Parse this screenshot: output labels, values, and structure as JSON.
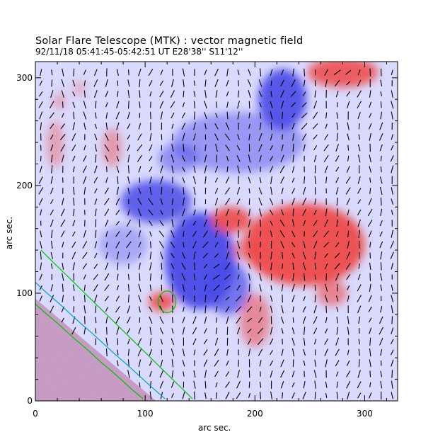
{
  "chart_data": {
    "type": "heatmap",
    "title": "Solar Flare Telescope (MTK) : vector magnetic field",
    "subtitle": "92/11/18  05:41:45-05:42:51 UT    E28'38''  S11'12''",
    "xlabel": "arc sec.",
    "ylabel": "arc sec.",
    "xlim": [
      0,
      330
    ],
    "ylim": [
      0,
      315
    ],
    "xticks": [
      0,
      100,
      200,
      300
    ],
    "yticks": [
      0,
      100,
      200,
      300
    ],
    "colors": {
      "positive": "#ee3b3b",
      "negative": "#3c3ce6",
      "background": "#d7d7ff",
      "vectors": "#000000",
      "limb_contours": [
        "#00c000",
        "#00a0c0"
      ]
    },
    "positive_regions": [
      {
        "cx": 245,
        "cy": 145,
        "rx": 55,
        "ry": 38,
        "strength": 0.95
      },
      {
        "cx": 178,
        "cy": 168,
        "rx": 18,
        "ry": 12,
        "strength": 0.9
      },
      {
        "cx": 192,
        "cy": 140,
        "rx": 14,
        "ry": 10,
        "strength": 0.5
      },
      {
        "cx": 270,
        "cy": 100,
        "rx": 14,
        "ry": 12,
        "strength": 0.6
      },
      {
        "cx": 200,
        "cy": 75,
        "rx": 14,
        "ry": 25,
        "strength": 0.55
      },
      {
        "cx": 115,
        "cy": 92,
        "rx": 12,
        "ry": 9,
        "strength": 0.85
      },
      {
        "cx": 280,
        "cy": 305,
        "rx": 32,
        "ry": 14,
        "strength": 0.85
      },
      {
        "cx": 18,
        "cy": 238,
        "rx": 8,
        "ry": 22,
        "strength": 0.4
      },
      {
        "cx": 70,
        "cy": 235,
        "rx": 9,
        "ry": 18,
        "strength": 0.45
      },
      {
        "cx": 22,
        "cy": 278,
        "rx": 6,
        "ry": 8,
        "strength": 0.35
      },
      {
        "cx": 40,
        "cy": 290,
        "rx": 6,
        "ry": 7,
        "strength": 0.3
      }
    ],
    "negative_regions": [
      {
        "cx": 150,
        "cy": 130,
        "rx": 32,
        "ry": 45,
        "strength": 0.95
      },
      {
        "cx": 110,
        "cy": 185,
        "rx": 32,
        "ry": 20,
        "strength": 0.85
      },
      {
        "cx": 175,
        "cy": 105,
        "rx": 20,
        "ry": 25,
        "strength": 0.7
      },
      {
        "cx": 225,
        "cy": 280,
        "rx": 22,
        "ry": 28,
        "strength": 0.9
      },
      {
        "cx": 185,
        "cy": 240,
        "rx": 60,
        "ry": 28,
        "strength": 0.45
      },
      {
        "cx": 130,
        "cy": 225,
        "rx": 18,
        "ry": 14,
        "strength": 0.5
      },
      {
        "cx": 80,
        "cy": 145,
        "rx": 22,
        "ry": 18,
        "strength": 0.35
      }
    ],
    "limb_contours": [
      {
        "color": "#00c000",
        "x0": 5,
        "y0": 140,
        "x1": 145,
        "y1": 0
      },
      {
        "color": "#00a0c0",
        "x0": 0,
        "y0": 110,
        "x1": 120,
        "y1": 0
      },
      {
        "color": "#00c000",
        "x0": 0,
        "y0": 90,
        "x1": 100,
        "y1": 0
      }
    ],
    "limb_boundary": {
      "x0": 0,
      "y0": 95,
      "x1": 110,
      "y1": 0
    },
    "plage_contour": {
      "color": "#00c000",
      "cx": 120,
      "cy": 92,
      "rx": 8,
      "ry": 10
    },
    "vector_grid_step": 10
  }
}
